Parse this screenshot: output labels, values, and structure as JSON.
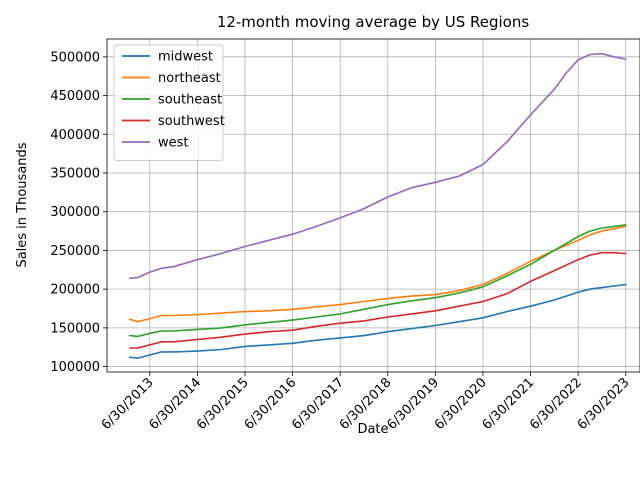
{
  "chart_data": {
    "type": "line",
    "title": "12-month moving average by US Regions",
    "xlabel": "Date",
    "ylabel": "Sales in Thousands",
    "x_start": 2012.6,
    "x_end": 2023.8,
    "ylim": [
      93000,
      523000
    ],
    "grid": true,
    "legend_position": "top-left",
    "x_ticks": [
      {
        "label": "6/30/2013",
        "x": 2013.5
      },
      {
        "label": "6/30/2014",
        "x": 2014.5
      },
      {
        "label": "6/30/2015",
        "x": 2015.5
      },
      {
        "label": "6/30/2016",
        "x": 2016.5
      },
      {
        "label": "6/30/2017",
        "x": 2017.5
      },
      {
        "label": "6/30/2018",
        "x": 2018.5
      },
      {
        "label": "6/30/2019",
        "x": 2019.5
      },
      {
        "label": "6/30/2020",
        "x": 2020.5
      },
      {
        "label": "6/30/2021",
        "x": 2021.5
      },
      {
        "label": "6/30/2022",
        "x": 2022.5
      },
      {
        "label": "6/30/2023",
        "x": 2023.5
      }
    ],
    "y_ticks": [
      100000,
      150000,
      200000,
      250000,
      300000,
      350000,
      400000,
      450000,
      500000
    ],
    "series": [
      {
        "name": "midwest",
        "color": "#1f77b4",
        "points": [
          [
            2013.08,
            112000
          ],
          [
            2013.25,
            111000
          ],
          [
            2013.5,
            115000
          ],
          [
            2013.75,
            119000
          ],
          [
            2014.0,
            119000
          ],
          [
            2014.5,
            120000
          ],
          [
            2015.0,
            122000
          ],
          [
            2015.5,
            126000
          ],
          [
            2016.0,
            128000
          ],
          [
            2016.5,
            130000
          ],
          [
            2017.0,
            134000
          ],
          [
            2017.5,
            137000
          ],
          [
            2018.0,
            140000
          ],
          [
            2018.5,
            145000
          ],
          [
            2019.0,
            149000
          ],
          [
            2019.5,
            153000
          ],
          [
            2020.0,
            158000
          ],
          [
            2020.5,
            163000
          ],
          [
            2021.0,
            171000
          ],
          [
            2021.5,
            178000
          ],
          [
            2022.0,
            186000
          ],
          [
            2022.5,
            196000
          ],
          [
            2022.75,
            200000
          ],
          [
            2023.0,
            202000
          ],
          [
            2023.25,
            204000
          ],
          [
            2023.5,
            206000
          ]
        ]
      },
      {
        "name": "northeast",
        "color": "#ff7f0e",
        "points": [
          [
            2013.08,
            161000
          ],
          [
            2013.25,
            158000
          ],
          [
            2013.5,
            162000
          ],
          [
            2013.75,
            166000
          ],
          [
            2014.0,
            166000
          ],
          [
            2014.5,
            167000
          ],
          [
            2015.0,
            169000
          ],
          [
            2015.5,
            171000
          ],
          [
            2016.0,
            172000
          ],
          [
            2016.5,
            174000
          ],
          [
            2017.0,
            177000
          ],
          [
            2017.5,
            180000
          ],
          [
            2018.0,
            184000
          ],
          [
            2018.5,
            188000
          ],
          [
            2019.0,
            191000
          ],
          [
            2019.5,
            193000
          ],
          [
            2020.0,
            198000
          ],
          [
            2020.5,
            206000
          ],
          [
            2021.0,
            220000
          ],
          [
            2021.5,
            236000
          ],
          [
            2022.0,
            250000
          ],
          [
            2022.5,
            263000
          ],
          [
            2022.75,
            270000
          ],
          [
            2023.0,
            275000
          ],
          [
            2023.25,
            278000
          ],
          [
            2023.5,
            281000
          ]
        ]
      },
      {
        "name": "southeast",
        "color": "#2ca02c",
        "points": [
          [
            2013.08,
            140000
          ],
          [
            2013.25,
            139000
          ],
          [
            2013.5,
            143000
          ],
          [
            2013.75,
            146000
          ],
          [
            2014.0,
            146000
          ],
          [
            2014.5,
            148000
          ],
          [
            2015.0,
            150000
          ],
          [
            2015.5,
            154000
          ],
          [
            2016.0,
            157000
          ],
          [
            2016.5,
            160000
          ],
          [
            2017.0,
            164000
          ],
          [
            2017.5,
            168000
          ],
          [
            2018.0,
            174000
          ],
          [
            2018.5,
            180000
          ],
          [
            2019.0,
            185000
          ],
          [
            2019.5,
            189000
          ],
          [
            2020.0,
            195000
          ],
          [
            2020.5,
            203000
          ],
          [
            2021.0,
            217000
          ],
          [
            2021.5,
            232000
          ],
          [
            2022.0,
            250000
          ],
          [
            2022.5,
            268000
          ],
          [
            2022.75,
            275000
          ],
          [
            2023.0,
            279000
          ],
          [
            2023.25,
            281000
          ],
          [
            2023.5,
            283000
          ]
        ]
      },
      {
        "name": "southwest",
        "color": "#d62728",
        "points": [
          [
            2013.08,
            124000
          ],
          [
            2013.25,
            124000
          ],
          [
            2013.5,
            128000
          ],
          [
            2013.75,
            132000
          ],
          [
            2014.0,
            132000
          ],
          [
            2014.5,
            135000
          ],
          [
            2015.0,
            138000
          ],
          [
            2015.5,
            142000
          ],
          [
            2016.0,
            145000
          ],
          [
            2016.5,
            147000
          ],
          [
            2017.0,
            152000
          ],
          [
            2017.5,
            156000
          ],
          [
            2018.0,
            159000
          ],
          [
            2018.5,
            164000
          ],
          [
            2019.0,
            168000
          ],
          [
            2019.5,
            172000
          ],
          [
            2020.0,
            178000
          ],
          [
            2020.5,
            184000
          ],
          [
            2021.0,
            194000
          ],
          [
            2021.5,
            210000
          ],
          [
            2022.0,
            224000
          ],
          [
            2022.5,
            238000
          ],
          [
            2022.75,
            244000
          ],
          [
            2023.0,
            247000
          ],
          [
            2023.25,
            247000
          ],
          [
            2023.5,
            246000
          ]
        ]
      },
      {
        "name": "west",
        "color": "#9467bd",
        "points": [
          [
            2013.08,
            214000
          ],
          [
            2013.25,
            215000
          ],
          [
            2013.5,
            222000
          ],
          [
            2013.75,
            227000
          ],
          [
            2014.0,
            229000
          ],
          [
            2014.5,
            238000
          ],
          [
            2015.0,
            246000
          ],
          [
            2015.5,
            255000
          ],
          [
            2016.0,
            263000
          ],
          [
            2016.5,
            271000
          ],
          [
            2017.0,
            281000
          ],
          [
            2017.5,
            292000
          ],
          [
            2018.0,
            304000
          ],
          [
            2018.5,
            319000
          ],
          [
            2019.0,
            331000
          ],
          [
            2019.5,
            338000
          ],
          [
            2020.0,
            346000
          ],
          [
            2020.5,
            361000
          ],
          [
            2021.0,
            390000
          ],
          [
            2021.5,
            425000
          ],
          [
            2022.0,
            458000
          ],
          [
            2022.25,
            479000
          ],
          [
            2022.5,
            496000
          ],
          [
            2022.75,
            503000
          ],
          [
            2023.0,
            504000
          ],
          [
            2023.25,
            500000
          ],
          [
            2023.5,
            497000
          ]
        ]
      }
    ]
  }
}
